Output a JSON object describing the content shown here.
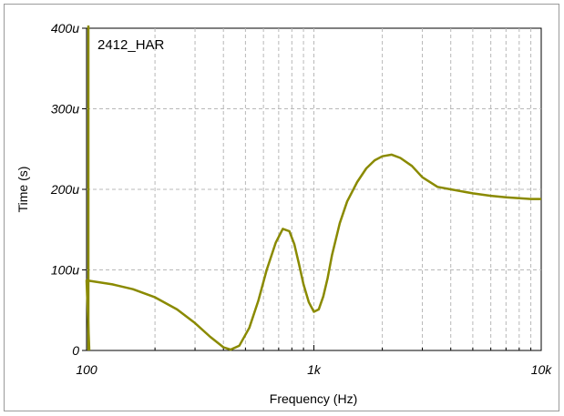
{
  "chart_data": {
    "type": "line",
    "title": "2412_HAR",
    "xlabel": "Frequency (Hz)",
    "ylabel": "Time (s)",
    "x_scale": "log",
    "xlim": [
      100,
      10000
    ],
    "ylim": [
      0,
      0.0004
    ],
    "x_ticks": [
      {
        "value": 100,
        "label": "100"
      },
      {
        "value": 1000,
        "label": "1k"
      },
      {
        "value": 10000,
        "label": "10k"
      }
    ],
    "y_ticks": [
      {
        "value": 0,
        "label": "0"
      },
      {
        "value": 0.0001,
        "label": "100u"
      },
      {
        "value": 0.0002,
        "label": "200u"
      },
      {
        "value": 0.0003,
        "label": "300u"
      },
      {
        "value": 0.0004,
        "label": "400u"
      }
    ],
    "grid": true,
    "line_color": "#8a8a00",
    "series": [
      {
        "x": [
          100,
          130,
          160,
          200,
          250,
          300,
          350,
          400,
          430,
          470,
          520,
          570,
          620,
          680,
          730,
          780,
          820,
          860,
          900,
          950,
          1000,
          1050,
          1100,
          1150,
          1200,
          1300,
          1400,
          1550,
          1700,
          1850,
          2000,
          2200,
          2400,
          2700,
          3000,
          3500,
          4000,
          5000,
          6000,
          7000,
          8000,
          9000,
          10000
        ],
        "y": [
          8.7e-05,
          8.2e-05,
          7.6e-05,
          6.6e-05,
          5.1e-05,
          3.4e-05,
          1.7e-05,
          4e-06,
          1e-06,
          6e-06,
          2.8e-05,
          6.2e-05,
          0.0001,
          0.000134,
          0.000151,
          0.000148,
          0.000132,
          0.000107,
          8.2e-05,
          6e-05,
          4.8e-05,
          5.1e-05,
          6.7e-05,
          9e-05,
          0.000118,
          0.000158,
          0.000185,
          0.000209,
          0.000226,
          0.000236,
          0.000241,
          0.000243,
          0.000239,
          0.000229,
          0.000215,
          0.000203,
          0.0002,
          0.000195,
          0.000192,
          0.00019,
          0.000189,
          0.000188,
          0.000188
        ]
      }
    ]
  }
}
